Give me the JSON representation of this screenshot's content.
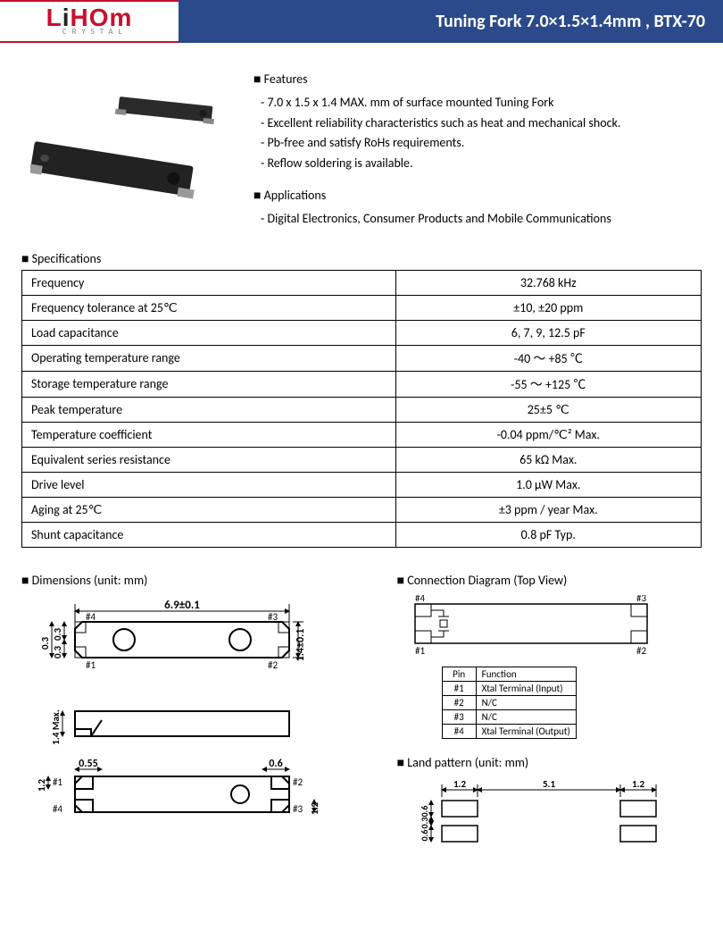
{
  "header": {
    "logo_main_pre": "L",
    "logo_main_dot": "i",
    "logo_main_post": "HOm",
    "logo_sub": "CRYSTAL",
    "title": "Tuning Fork 7.0×1.5×1.4mm ,  BTX-70"
  },
  "features": {
    "heading": "Features",
    "items": [
      "- 7.0 x 1.5 x 1.4 MAX. mm of surface mounted Tuning Fork",
      "- Excellent reliability characteristics such as heat and mechanical shock.",
      "- Pb-free and satisfy RoHs requirements.",
      "- Reflow soldering is available."
    ]
  },
  "applications": {
    "heading": "Applications",
    "items": [
      "- Digital Electronics, Consumer Products and Mobile Communications"
    ]
  },
  "specifications": {
    "heading": "Specifications",
    "rows": [
      {
        "param": "Frequency",
        "value": "32.768 kHz"
      },
      {
        "param": "Frequency tolerance at 25℃",
        "value": "±10, ±20 ppm"
      },
      {
        "param": "Load capacitance",
        "value": "6, 7, 9, 12.5 pF"
      },
      {
        "param": "Operating temperature range",
        "value": "-40 ～ +85 ℃"
      },
      {
        "param": "Storage temperature range",
        "value": "-55 ～ +125 ℃"
      },
      {
        "param": "Peak temperature",
        "value": "25±5 ℃"
      },
      {
        "param": "Temperature coefficient",
        "value": "-0.04 ppm/℃² Max."
      },
      {
        "param": "Equivalent series resistance",
        "value": "65 kΩ Max."
      },
      {
        "param": "Drive level",
        "value": "1.0 μW Max."
      },
      {
        "param": "Aging at 25℃",
        "value": "±3 ppm / year Max."
      },
      {
        "param": "Shunt capacitance",
        "value": "0.8 pF Typ."
      }
    ]
  },
  "dimensions": {
    "heading": "Dimensions (unit: mm)",
    "top_length": "6.9±0.1",
    "height": "1.4±0.1",
    "half_h1": "0.3",
    "half_h2": "0.3",
    "side_h": "1.4 Max.",
    "pad_w1": "0.55",
    "pad_w2": "0.6",
    "pad_h": "1.2",
    "pin1": "#1",
    "pin2": "#2",
    "pin3": "#3",
    "pin4": "#4"
  },
  "connection": {
    "heading": "Connection Diagram (Top View)",
    "pin1": "#1",
    "pin2": "#2",
    "pin3": "#3",
    "pin4": "#4",
    "table_header_pin": "Pin",
    "table_header_func": "Function",
    "rows": [
      {
        "pin": "#1",
        "func": "Xtal Terminal (Input)"
      },
      {
        "pin": "#2",
        "func": "N/C"
      },
      {
        "pin": "#3",
        "func": "N/C"
      },
      {
        "pin": "#4",
        "func": "Xtal Terminal (Output)"
      }
    ]
  },
  "land": {
    "heading": "Land pattern (unit: mm)",
    "w1": "1.2",
    "gap": "5.1",
    "w2": "1.2",
    "h1": "0.6",
    "h2": "0.3",
    "h3": "0.6"
  },
  "colors": {
    "brand_red": "#c8102e",
    "header_blue": "#2b4a8b",
    "text": "#000000",
    "bg": "#ffffff",
    "component_dark": "#2a2a2a"
  }
}
